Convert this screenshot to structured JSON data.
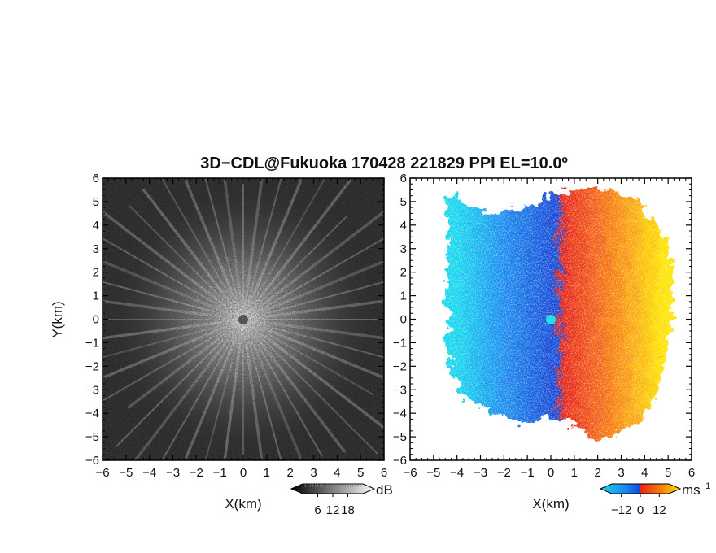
{
  "chart_data": {
    "title": "3D−CDL@Fukuoka 170428 221829 PPI EL=10.0º",
    "panels": [
      {
        "type": "heatmap",
        "variable": "reflectivity",
        "xlabel": "X(km)",
        "ylabel": "Y(km)",
        "xlim": [
          -6,
          6
        ],
        "ylim": [
          -6,
          6
        ],
        "xticks": [
          "−6",
          "−5",
          "−4",
          "−3",
          "−2",
          "−1",
          "0",
          "1",
          "2",
          "3",
          "4",
          "5",
          "6"
        ],
        "yticks": [
          "−6",
          "−5",
          "−4",
          "−3",
          "−2",
          "−1",
          "0",
          "1",
          "2",
          "3",
          "4",
          "5",
          "6"
        ],
        "colormap": "grayscale",
        "colorbar": {
          "unit": "dB",
          "ticks": [
            "6",
            "12",
            "18"
          ],
          "tick_values": [
            6,
            12,
            18
          ],
          "range": [
            0,
            24
          ]
        },
        "center_marker_color": "#555555"
      },
      {
        "type": "heatmap",
        "variable": "doppler velocity",
        "xlabel": "X(km)",
        "ylabel": "",
        "xlim": [
          -6,
          6
        ],
        "ylim": [
          -6,
          6
        ],
        "xticks": [
          "−6",
          "−5",
          "−4",
          "−3",
          "−2",
          "−1",
          "0",
          "1",
          "2",
          "3",
          "4",
          "5",
          "6"
        ],
        "yticks": [
          "−6",
          "−5",
          "−4",
          "−3",
          "−2",
          "−1",
          "0",
          "1",
          "2",
          "3",
          "4",
          "5",
          "6"
        ],
        "colormap": [
          "#12d6ee",
          "#1a8cf0",
          "#1747d6",
          "#e8241a",
          "#f77a10",
          "#ffe400"
        ],
        "colorbar": {
          "unit": "ms",
          "unit_sup": "−1",
          "ticks": [
            "−12",
            "0",
            "12"
          ],
          "tick_values": [
            -12,
            0,
            12
          ],
          "range": [
            -18,
            18
          ]
        },
        "center_marker_color": "#22e0e8"
      }
    ]
  }
}
